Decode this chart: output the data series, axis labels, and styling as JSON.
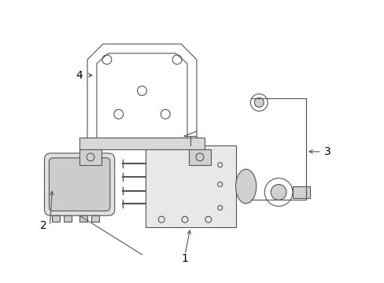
{
  "title": "",
  "background_color": "#ffffff",
  "line_color": "#555555",
  "text_color": "#000000",
  "fig_width": 4.89,
  "fig_height": 3.6,
  "dpi": 100,
  "label_1": "1",
  "label_2": "2",
  "label_3": "3",
  "label_4": "4"
}
